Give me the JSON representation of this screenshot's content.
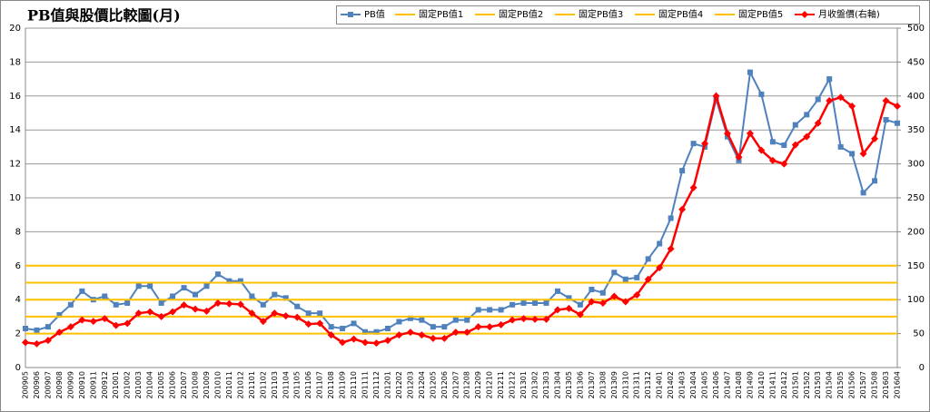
{
  "chart_data": {
    "type": "line",
    "title": "PB值與股價比較圖(月)",
    "categories": [
      "200905",
      "200906",
      "200907",
      "200908",
      "200909",
      "200910",
      "200911",
      "200912",
      "201001",
      "201002",
      "201003",
      "201004",
      "201005",
      "201006",
      "201007",
      "201008",
      "201009",
      "201010",
      "201011",
      "201012",
      "201101",
      "201102",
      "201103",
      "201104",
      "201105",
      "201106",
      "201107",
      "201108",
      "201109",
      "201110",
      "201111",
      "201112",
      "201201",
      "201202",
      "201203",
      "201204",
      "201205",
      "201206",
      "201207",
      "201208",
      "201209",
      "201210",
      "201211",
      "201212",
      "201301",
      "201302",
      "201303",
      "201304",
      "201305",
      "201306",
      "201307",
      "201308",
      "201309",
      "201310",
      "201311",
      "201312",
      "201401",
      "201402",
      "201403",
      "201404",
      "201405",
      "201406",
      "201407",
      "201408",
      "201409",
      "201410",
      "201411",
      "201412",
      "201501",
      "201502",
      "201503",
      "201504",
      "201505",
      "201506",
      "201507",
      "201508",
      "201603",
      "201604"
    ],
    "series": [
      {
        "name": "PB值",
        "color": "#4f81bd",
        "marker": "square",
        "values": [
          2.3,
          2.2,
          2.4,
          3.1,
          3.7,
          4.5,
          4.0,
          4.2,
          3.7,
          3.8,
          4.8,
          4.8,
          3.8,
          4.2,
          4.7,
          4.3,
          4.8,
          5.5,
          5.1,
          5.1,
          4.2,
          3.7,
          4.3,
          4.1,
          3.6,
          3.2,
          3.2,
          2.4,
          2.3,
          2.6,
          2.1,
          2.1,
          2.3,
          2.7,
          2.9,
          2.8,
          2.4,
          2.4,
          2.8,
          2.8,
          3.4,
          3.4,
          3.4,
          3.7,
          3.8,
          3.8,
          3.8,
          4.5,
          4.1,
          3.7,
          4.6,
          4.4,
          5.6,
          5.2,
          5.3,
          6.4,
          7.3,
          8.8,
          11.6,
          13.2,
          13.0,
          15.8,
          13.6,
          12.2,
          17.4,
          16.1,
          13.3,
          13.1,
          14.3,
          14.9,
          15.8,
          17.0,
          13.0,
          12.6,
          10.3,
          11.0,
          14.6,
          14.4
        ]
      },
      {
        "name": "固定PB值1",
        "color": "#ffc000",
        "value": 2
      },
      {
        "name": "固定PB值2",
        "color": "#ffc000",
        "value": 3
      },
      {
        "name": "固定PB值3",
        "color": "#ffc000",
        "value": 4
      },
      {
        "name": "固定PB值4",
        "color": "#ffc000",
        "value": 5
      },
      {
        "name": "固定PB值5",
        "color": "#ffc000",
        "value": 6
      },
      {
        "name": "月收盤價(右軸)",
        "color": "#ff0000",
        "marker": "diamond",
        "axis": "y2",
        "values": [
          37,
          35,
          40,
          52,
          60,
          70,
          68,
          72,
          62,
          65,
          80,
          82,
          75,
          82,
          92,
          86,
          83,
          95,
          94,
          93,
          80,
          68,
          80,
          76,
          74,
          64,
          65,
          48,
          37,
          42,
          37,
          36,
          40,
          48,
          52,
          48,
          43,
          43,
          52,
          52,
          60,
          60,
          63,
          70,
          72,
          71,
          71,
          85,
          87,
          78,
          97,
          95,
          105,
          97,
          107,
          130,
          147,
          175,
          233,
          265,
          330,
          400,
          345,
          310,
          345,
          320,
          305,
          300,
          328,
          340,
          360,
          393,
          398,
          385,
          315,
          337,
          393,
          385
        ]
      }
    ],
    "ylim": [
      0,
      20
    ],
    "yticks": [
      0,
      2,
      4,
      6,
      8,
      10,
      12,
      14,
      16,
      18,
      20
    ],
    "y2lim": [
      0,
      500
    ],
    "y2ticks": [
      0,
      50,
      100,
      150,
      200,
      250,
      300,
      350,
      400,
      450,
      500
    ],
    "grid": true,
    "legend": "top-right"
  }
}
